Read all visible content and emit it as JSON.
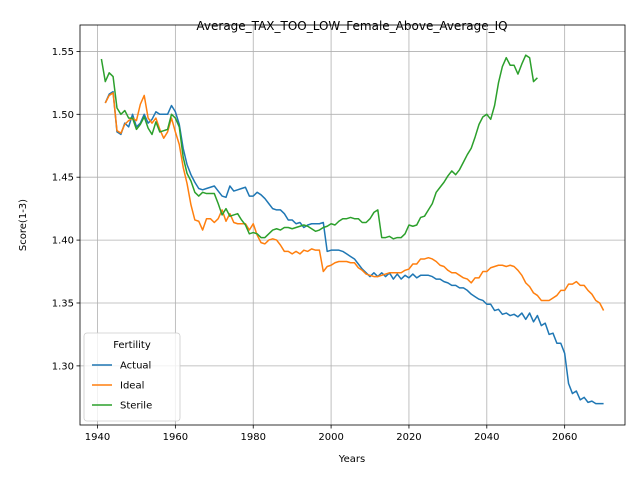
{
  "chart_data": {
    "type": "line",
    "title": "Average_TAX_TOO_LOW_Female_Above_Average_IQ",
    "xlabel": "Years",
    "ylabel": "Score(1-3)",
    "legend_title": "Fertility",
    "legend": "lower left",
    "grid": true,
    "xlim": [
      1935.5,
      2075.5
    ],
    "ylim": [
      1.253,
      1.571
    ],
    "xticks": [
      1940,
      1960,
      1980,
      2000,
      2020,
      2040,
      2060
    ],
    "yticks": [
      {
        "value": 1.3,
        "label": "1.30"
      },
      1.35,
      {
        "value": 1.4,
        "label": "1.40"
      },
      1.45,
      {
        "value": 1.5,
        "label": "1.50"
      },
      1.55
    ],
    "x": [
      1941,
      1942,
      1943,
      1944,
      1945,
      1946,
      1947,
      1948,
      1949,
      1950,
      1951,
      1952,
      1953,
      1954,
      1955,
      1956,
      1957,
      1958,
      1959,
      1960,
      1961,
      1962,
      1963,
      1964,
      1965,
      1966,
      1967,
      1968,
      1969,
      1970,
      1971,
      1972,
      1973,
      1974,
      1975,
      1976,
      1977,
      1978,
      1979,
      1980,
      1981,
      1982,
      1983,
      1984,
      1985,
      1986,
      1987,
      1988,
      1989,
      1990,
      1991,
      1992,
      1993,
      1994,
      1995,
      1996,
      1997,
      1998,
      1999,
      2000,
      2001,
      2002,
      2003,
      2004,
      2005,
      2006,
      2007,
      2008,
      2009,
      2010,
      2011,
      2012,
      2013,
      2014,
      2015,
      2016,
      2017,
      2018,
      2019,
      2020,
      2021,
      2022,
      2023,
      2024,
      2025,
      2026,
      2027,
      2028,
      2029,
      2030,
      2031,
      2032,
      2033,
      2034,
      2035,
      2036,
      2037,
      2038,
      2039,
      2040,
      2041,
      2042,
      2043,
      2044,
      2045,
      2046,
      2047,
      2048,
      2049,
      2050,
      2051,
      2052,
      2053,
      2054,
      2055,
      2056,
      2057,
      2058,
      2059,
      2060,
      2061,
      2062,
      2063,
      2064,
      2065,
      2066,
      2067,
      2068,
      2069,
      2070
    ],
    "series": [
      {
        "name": "Actual",
        "color": "#1f77b4",
        "values": [
          null,
          1.509,
          1.516,
          1.518,
          1.486,
          1.484,
          1.493,
          1.49,
          1.5,
          1.49,
          1.493,
          1.5,
          1.493,
          1.496,
          1.502,
          1.5,
          1.5,
          1.5,
          1.507,
          1.502,
          1.492,
          1.473,
          1.46,
          1.452,
          1.446,
          1.441,
          1.44,
          1.441,
          1.442,
          1.443,
          1.439,
          1.435,
          1.434,
          1.443,
          1.439,
          1.44,
          1.441,
          1.442,
          1.435,
          1.435,
          1.438,
          1.436,
          1.433,
          1.429,
          1.425,
          1.424,
          1.424,
          1.421,
          1.416,
          1.416,
          1.413,
          1.414,
          1.41,
          1.412,
          1.413,
          1.413,
          1.413,
          1.414,
          1.391,
          1.392,
          1.392,
          1.392,
          1.391,
          1.389,
          1.387,
          1.385,
          1.381,
          1.377,
          1.374,
          1.371,
          1.374,
          1.371,
          1.374,
          1.371,
          1.374,
          1.369,
          1.373,
          1.369,
          1.372,
          1.37,
          1.373,
          1.37,
          1.372,
          1.372,
          1.372,
          1.371,
          1.369,
          1.369,
          1.367,
          1.366,
          1.364,
          1.364,
          1.362,
          1.362,
          1.36,
          1.357,
          1.355,
          1.353,
          1.352,
          1.349,
          1.349,
          1.344,
          1.345,
          1.341,
          1.342,
          1.34,
          1.341,
          1.339,
          1.342,
          1.337,
          1.342,
          1.335,
          1.34,
          1.332,
          1.334,
          1.325,
          1.326,
          1.318,
          1.318,
          1.31,
          1.286,
          1.278,
          1.28,
          1.273,
          1.275,
          1.271,
          1.272,
          1.27,
          1.27,
          1.27
        ]
      },
      {
        "name": "Ideal",
        "color": "#ff7f0e",
        "values": [
          null,
          1.509,
          1.515,
          1.517,
          1.487,
          1.485,
          1.492,
          1.495,
          1.497,
          1.495,
          1.508,
          1.515,
          1.497,
          1.493,
          1.497,
          1.488,
          1.481,
          1.486,
          1.497,
          1.486,
          1.476,
          1.458,
          1.445,
          1.428,
          1.416,
          1.415,
          1.408,
          1.417,
          1.417,
          1.414,
          1.417,
          1.424,
          1.415,
          1.421,
          1.414,
          1.413,
          1.413,
          1.413,
          1.408,
          1.413,
          1.404,
          1.398,
          1.397,
          1.4,
          1.401,
          1.4,
          1.396,
          1.391,
          1.391,
          1.389,
          1.391,
          1.389,
          1.392,
          1.391,
          1.393,
          1.392,
          1.392,
          1.375,
          1.379,
          1.38,
          1.382,
          1.383,
          1.383,
          1.383,
          1.382,
          1.382,
          1.378,
          1.376,
          1.373,
          1.372,
          1.371,
          1.371,
          1.372,
          1.373,
          1.374,
          1.374,
          1.374,
          1.374,
          1.376,
          1.377,
          1.381,
          1.381,
          1.385,
          1.385,
          1.386,
          1.385,
          1.383,
          1.38,
          1.379,
          1.376,
          1.374,
          1.374,
          1.372,
          1.37,
          1.369,
          1.366,
          1.37,
          1.37,
          1.375,
          1.375,
          1.378,
          1.379,
          1.38,
          1.38,
          1.379,
          1.38,
          1.379,
          1.376,
          1.372,
          1.366,
          1.363,
          1.358,
          1.356,
          1.352,
          1.352,
          1.352,
          1.354,
          1.356,
          1.36,
          1.36,
          1.365,
          1.365,
          1.367,
          1.364,
          1.364,
          1.36,
          1.357,
          1.352,
          1.35,
          1.344
        ]
      },
      {
        "name": "Sterile",
        "color": "#2ca02c",
        "values": [
          1.544,
          1.526,
          1.533,
          1.53,
          1.505,
          1.5,
          1.503,
          1.497,
          1.497,
          1.488,
          1.492,
          1.498,
          1.489,
          1.484,
          1.494,
          1.486,
          1.487,
          1.488,
          1.5,
          1.497,
          1.49,
          1.466,
          1.453,
          1.447,
          1.438,
          1.435,
          1.438,
          1.437,
          1.437,
          1.437,
          1.429,
          1.42,
          1.425,
          1.419,
          1.42,
          1.421,
          1.416,
          1.412,
          1.405,
          1.406,
          1.405,
          1.402,
          1.402,
          1.405,
          1.408,
          1.409,
          1.408,
          1.41,
          1.41,
          1.409,
          1.41,
          1.411,
          1.412,
          1.411,
          1.409,
          1.407,
          1.408,
          1.41,
          1.411,
          1.413,
          1.412,
          1.415,
          1.417,
          1.417,
          1.418,
          1.417,
          1.417,
          1.414,
          1.414,
          1.417,
          1.422,
          1.424,
          1.402,
          1.402,
          1.403,
          1.401,
          1.402,
          1.402,
          1.405,
          1.412,
          1.411,
          1.412,
          1.418,
          1.419,
          1.424,
          1.429,
          1.438,
          1.442,
          1.446,
          1.451,
          1.455,
          1.452,
          1.456,
          1.462,
          1.468,
          1.473,
          1.482,
          1.492,
          1.498,
          1.5,
          1.496,
          1.507,
          1.525,
          1.538,
          1.545,
          1.539,
          1.539,
          1.532,
          1.54,
          1.547,
          1.545,
          1.526,
          1.529,
          null,
          null,
          null,
          null,
          null,
          null,
          null,
          null,
          null,
          null,
          null,
          null,
          null,
          null,
          null,
          null,
          null
        ]
      }
    ]
  }
}
